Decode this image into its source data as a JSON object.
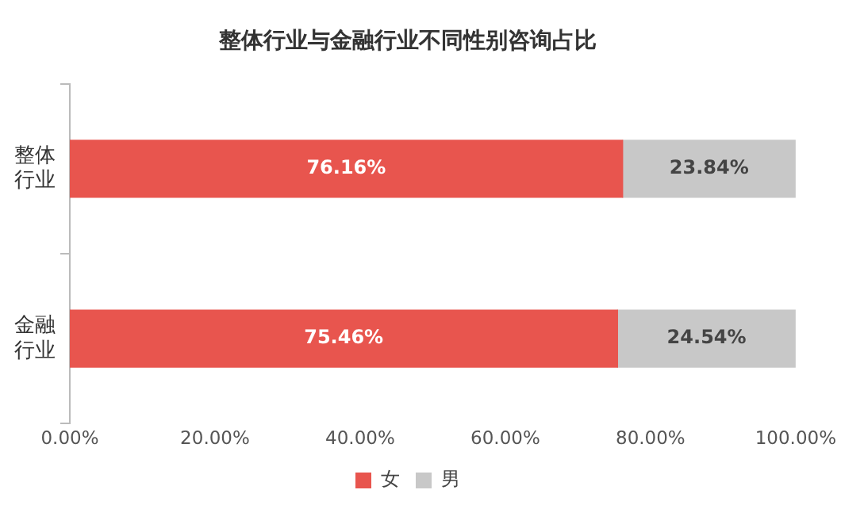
{
  "chart_data": {
    "type": "bar",
    "orientation": "horizontal",
    "stacked": true,
    "title": "整体行业与金融行业不同性别咨询占比",
    "categories": [
      "整体行业",
      "金融行业"
    ],
    "series": [
      {
        "name": "女",
        "color": "#e8554e",
        "values": [
          76.16,
          75.46
        ],
        "value_labels": [
          "76.16%",
          "75.46%"
        ]
      },
      {
        "name": "男",
        "color": "#c8c8c8",
        "values": [
          23.84,
          24.54
        ],
        "value_labels": [
          "23.84%",
          "24.54%"
        ]
      }
    ],
    "xlim": [
      0,
      100
    ],
    "xticks": [
      {
        "value": 0,
        "label": "0.00%"
      },
      {
        "value": 20,
        "label": "20.00%"
      },
      {
        "value": 40,
        "label": "40.00%"
      },
      {
        "value": 60,
        "label": "60.00%"
      },
      {
        "value": 80,
        "label": "80.00%"
      },
      {
        "value": 100,
        "label": "100.00%"
      }
    ],
    "grid": false,
    "legend": "bottom"
  }
}
